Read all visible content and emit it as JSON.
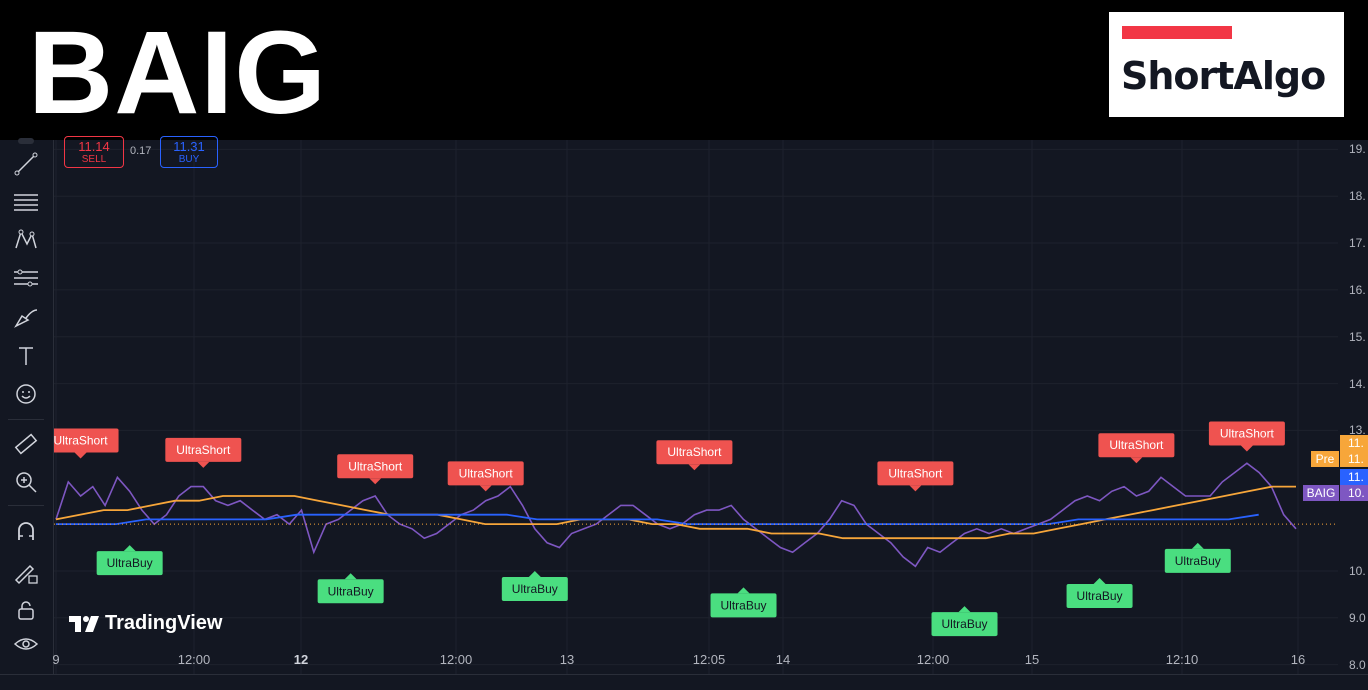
{
  "ticker": "BAIG",
  "logo": {
    "text": "ShortAlgo",
    "bar_color": "#f23645"
  },
  "trade_panel": {
    "sell_price": "11.14",
    "sell_label": "SELL",
    "spread": "0.17",
    "buy_price": "11.31",
    "buy_label": "BUY"
  },
  "watermark": "TradingView",
  "toolbar": {
    "icons": [
      "cursor-icon",
      "trendline-icon",
      "fib-icon",
      "pattern-icon",
      "forecast-icon",
      "brush-icon",
      "text-icon",
      "emoji-icon",
      "ruler-icon",
      "zoom-icon",
      "magnet-icon",
      "lock-draw-icon",
      "lock-icon",
      "eye-icon"
    ]
  },
  "price_axis": {
    "labels": [
      "19.",
      "18.",
      "17.",
      "16.",
      "15.",
      "14.",
      "13.",
      "11.",
      "11.",
      "11.",
      "10.",
      "10.",
      "9.0",
      "8.0"
    ],
    "tags": {
      "orange_a": "11.",
      "pre": "Pre",
      "orange_b": "11.",
      "blue": "11.",
      "symbol": "BAIG",
      "purple": "10."
    }
  },
  "time_axis": {
    "labels": [
      {
        "text": "9",
        "bold": false
      },
      {
        "text": "12:00",
        "bold": false
      },
      {
        "text": "12",
        "bold": true
      },
      {
        "text": "12:00",
        "bold": false
      },
      {
        "text": "13",
        "bold": false
      },
      {
        "text": "12:05",
        "bold": false
      },
      {
        "text": "14",
        "bold": false
      },
      {
        "text": "12:00",
        "bold": false
      },
      {
        "text": "15",
        "bold": false
      },
      {
        "text": "12:10",
        "bold": false
      },
      {
        "text": "16",
        "bold": false
      }
    ]
  },
  "signals": {
    "short_label": "UltraShort",
    "buy_label": "UltraBuy",
    "short_color": "#ef5350",
    "buy_color": "#4ade80"
  },
  "chart_data": {
    "type": "line",
    "title": "",
    "ylim": [
      7.8,
      19.2
    ],
    "series": [
      {
        "color": "#7e57c2",
        "values": [
          11.1,
          11.9,
          11.6,
          11.8,
          11.4,
          12.0,
          11.7,
          11.3,
          11.0,
          11.2,
          11.6,
          11.8,
          11.8,
          11.5,
          11.4,
          11.5,
          11.3,
          11.1,
          11.2,
          11.0,
          11.3,
          10.4,
          11.0,
          11.1,
          11.3,
          11.5,
          11.6,
          11.2,
          11.0,
          10.9,
          10.7,
          10.8,
          11.0,
          11.2,
          11.3,
          11.5,
          11.6,
          11.8,
          11.4,
          10.9,
          10.6,
          10.5,
          10.8,
          10.9,
          11.0,
          11.2,
          11.4,
          11.4,
          11.2,
          11.0,
          10.9,
          11.0,
          11.2,
          11.3,
          11.3,
          11.4,
          11.1,
          10.9,
          10.7,
          10.5,
          10.4,
          10.6,
          10.8,
          11.1,
          11.5,
          11.4,
          11.0,
          10.8,
          10.6,
          10.3,
          10.1,
          10.5,
          10.4,
          10.6,
          10.8,
          10.9,
          10.8,
          10.9,
          10.8,
          10.9,
          11.0,
          11.1,
          11.3,
          11.5,
          11.6,
          11.5,
          11.7,
          11.8,
          11.6,
          11.7,
          12.0,
          11.8,
          11.6,
          11.6,
          11.6,
          11.9,
          12.1,
          12.3,
          12.1,
          11.8,
          11.2,
          10.9
        ]
      },
      {
        "color": "#f7a63a",
        "values": [
          11.1,
          11.2,
          11.3,
          11.3,
          11.4,
          11.5,
          11.5,
          11.6,
          11.6,
          11.6,
          11.6,
          11.5,
          11.4,
          11.3,
          11.2,
          11.2,
          11.2,
          11.1,
          11.0,
          11.0,
          11.0,
          11.0,
          11.1,
          11.1,
          11.1,
          11.0,
          11.0,
          10.9,
          10.9,
          10.9,
          10.8,
          10.8,
          10.8,
          10.7,
          10.7,
          10.7,
          10.7,
          10.7,
          10.7,
          10.7,
          10.8,
          10.8,
          10.9,
          11.0,
          11.1,
          11.2,
          11.3,
          11.4,
          11.5,
          11.6,
          11.7,
          11.8,
          11.8
        ]
      },
      {
        "color": "#2962ff",
        "values": [
          11.0,
          11.0,
          11.0,
          11.1,
          11.1,
          11.1,
          11.1,
          11.1,
          11.2,
          11.2,
          11.2,
          11.2,
          11.2,
          11.2,
          11.2,
          11.2,
          11.1,
          11.1,
          11.1,
          11.1,
          11.1,
          11.0,
          11.0,
          11.0,
          11.0,
          11.0,
          11.0,
          11.0,
          11.0,
          11.0,
          11.0,
          11.0,
          11.0,
          11.0,
          11.1,
          11.1,
          11.1,
          11.1,
          11.1,
          11.1,
          11.2
        ]
      }
    ],
    "markers": [
      {
        "type": "short",
        "x_index": 2,
        "y": 12.4
      },
      {
        "type": "short",
        "x_index": 12,
        "y": 12.2
      },
      {
        "type": "short",
        "x_index": 26,
        "y": 11.85
      },
      {
        "type": "short",
        "x_index": 35,
        "y": 11.7
      },
      {
        "type": "short",
        "x_index": 52,
        "y": 12.15
      },
      {
        "type": "short",
        "x_index": 70,
        "y": 11.7
      },
      {
        "type": "short",
        "x_index": 88,
        "y": 12.3
      },
      {
        "type": "short",
        "x_index": 97,
        "y": 12.55
      },
      {
        "type": "buy",
        "x_index": 6,
        "y": 10.55
      },
      {
        "type": "buy",
        "x_index": 24,
        "y": 9.95
      },
      {
        "type": "buy",
        "x_index": 39,
        "y": 10.0
      },
      {
        "type": "buy",
        "x_index": 56,
        "y": 9.65
      },
      {
        "type": "buy",
        "x_index": 74,
        "y": 9.25
      },
      {
        "type": "buy",
        "x_index": 85,
        "y": 9.85
      },
      {
        "type": "buy",
        "x_index": 93,
        "y": 10.6
      }
    ]
  }
}
